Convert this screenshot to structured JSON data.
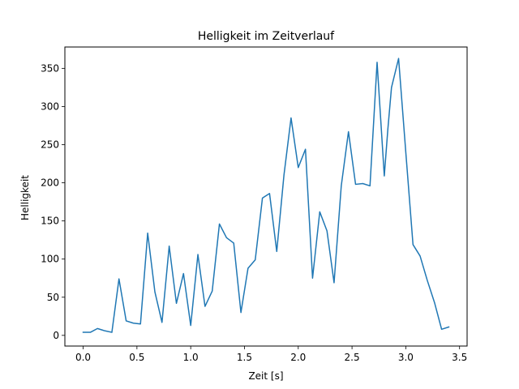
{
  "chart_data": {
    "type": "line",
    "title": "Helligkeit im Zeitverlauf",
    "xlabel": "Zeit [s]",
    "ylabel": "Helligkeit",
    "xlim": [
      -0.17,
      3.57
    ],
    "ylim": [
      -14,
      378
    ],
    "xticks": [
      0.0,
      0.5,
      1.0,
      1.5,
      2.0,
      2.5,
      3.0,
      3.5
    ],
    "xtick_labels": [
      "0.0",
      "0.5",
      "1.0",
      "1.5",
      "2.0",
      "2.5",
      "3.0",
      "3.5"
    ],
    "yticks": [
      0,
      50,
      100,
      150,
      200,
      250,
      300,
      350
    ],
    "ytick_labels": [
      "0",
      "50",
      "100",
      "150",
      "200",
      "250",
      "300",
      "350"
    ],
    "grid": false,
    "line_color": "#1f77b4",
    "series": [
      {
        "x": [
          0.0,
          0.067,
          0.133,
          0.2,
          0.267,
          0.333,
          0.4,
          0.467,
          0.533,
          0.6,
          0.667,
          0.733,
          0.8,
          0.867,
          0.933,
          1.0,
          1.067,
          1.133,
          1.2,
          1.267,
          1.333,
          1.4,
          1.467,
          1.533,
          1.6,
          1.667,
          1.733,
          1.8,
          1.867,
          1.933,
          2.0,
          2.067,
          2.133,
          2.2,
          2.267,
          2.333,
          2.4,
          2.467,
          2.533,
          2.6,
          2.667,
          2.733,
          2.8,
          2.833,
          2.867,
          2.933,
          3.0,
          3.067,
          3.133,
          3.2,
          3.267,
          3.333,
          3.4
        ],
        "values": [
          4,
          4,
          9,
          6,
          4,
          74,
          19,
          16,
          15,
          134,
          57,
          17,
          117,
          42,
          81,
          13,
          106,
          38,
          58,
          146,
          128,
          121,
          30,
          88,
          99,
          180,
          186,
          110,
          210,
          285,
          220,
          244,
          75,
          162,
          137,
          69,
          196,
          267,
          198,
          199,
          196,
          358,
          209,
          270,
          325,
          363,
          240,
          119,
          104,
          72,
          43,
          8,
          11
        ]
      }
    ]
  }
}
